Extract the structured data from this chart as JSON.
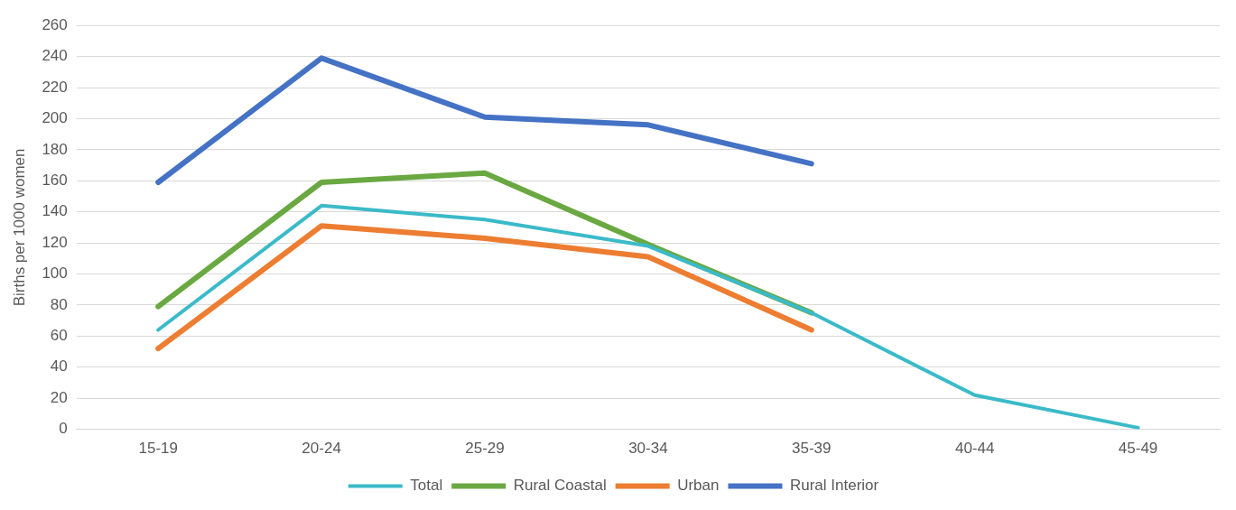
{
  "chart_data": {
    "type": "line",
    "ylabel": "Births per 1000 women",
    "categories": [
      "15-19",
      "20-24",
      "25-29",
      "30-34",
      "35-39",
      "40-44",
      "45-49"
    ],
    "series": [
      {
        "name": "Total",
        "color": "#3bbac9",
        "values": [
          64,
          144,
          135,
          118,
          75,
          22,
          1
        ]
      },
      {
        "name": "Rural Coastal",
        "color": "#6aa842",
        "values": [
          79,
          159,
          165,
          119,
          75,
          null,
          null
        ]
      },
      {
        "name": "Urban",
        "color": "#ed7d31",
        "values": [
          52,
          131,
          123,
          111,
          64,
          null,
          null
        ]
      },
      {
        "name": "Rural Interior",
        "color": "#4472c4",
        "values": [
          159,
          239,
          201,
          196,
          171,
          null,
          null
        ]
      }
    ],
    "ylim": [
      0,
      260
    ],
    "yticks": [
      0,
      20,
      40,
      60,
      80,
      100,
      120,
      140,
      160,
      180,
      200,
      220,
      240,
      260
    ],
    "grid": "y",
    "legend": "bottom",
    "marker": "none",
    "line_style": "solid"
  }
}
